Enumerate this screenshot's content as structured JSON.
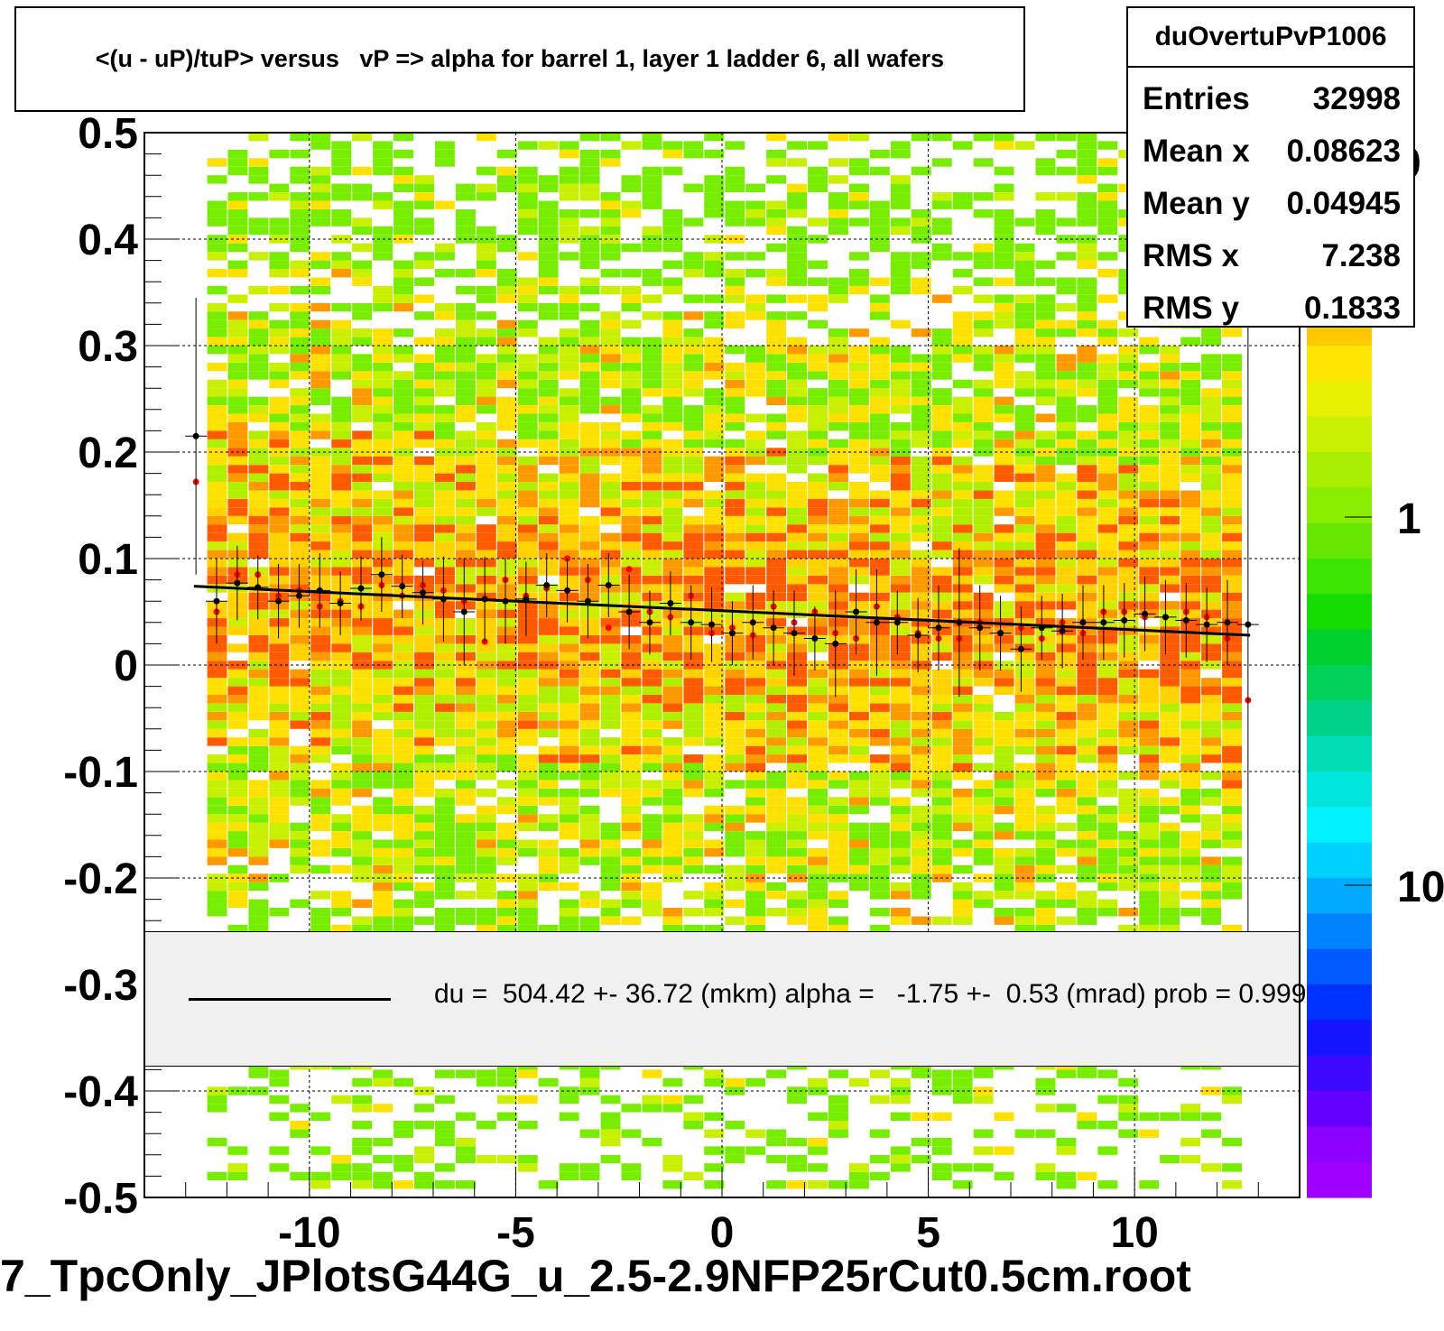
{
  "chart_data": {
    "type": "heatmap",
    "title": "<(u - uP)/tuP> versus   vP => alpha for barrel 1, layer 1 ladder 6, all wafers",
    "xlabel": "",
    "ylabel": "",
    "xlim": [
      -14,
      14
    ],
    "ylim": [
      -0.5,
      0.5
    ],
    "x_ticks": [
      -10,
      -5,
      0,
      5,
      10
    ],
    "y_ticks": [
      0.5,
      0.4,
      0.3,
      0.2,
      0.1,
      0,
      -0.1,
      -0.2,
      -0.3,
      -0.4,
      -0.5
    ],
    "grid": true,
    "colorbar": {
      "scale": "log",
      "labels": [
        "0",
        "1",
        "10"
      ]
    },
    "stats": {
      "name": "duOvertuPvP1006",
      "rows": [
        {
          "label": "Entries",
          "value": "32998"
        },
        {
          "label": "Mean x",
          "value": "0.08623"
        },
        {
          "label": "Mean y",
          "value": "0.04945"
        },
        {
          "label": "RMS x",
          "value": "7.238"
        },
        {
          "label": "RMS y",
          "value": "0.1833"
        }
      ]
    },
    "fit": {
      "label": "du =  504.42 +- 36.72 (mkm) alpha =   -1.75 +-  0.53 (mrad) prob = 0.999",
      "x": [
        -12.8,
        12.8
      ],
      "y": [
        0.074,
        0.028
      ]
    },
    "profile_black": {
      "x": [
        -12.75,
        -12.25,
        -11.75,
        -11.25,
        -10.75,
        -10.25,
        -9.75,
        -9.25,
        -8.75,
        -8.25,
        -7.75,
        -7.25,
        -6.75,
        -6.25,
        -5.75,
        -5.25,
        -4.75,
        -4.25,
        -3.75,
        -3.25,
        -2.75,
        -2.25,
        -1.75,
        -1.25,
        -0.75,
        -0.25,
        0.25,
        0.75,
        1.25,
        1.75,
        2.25,
        2.75,
        3.25,
        3.75,
        4.25,
        4.75,
        5.25,
        5.75,
        6.25,
        6.75,
        7.25,
        7.75,
        8.25,
        8.75,
        9.25,
        9.75,
        10.25,
        10.75,
        11.25,
        11.75,
        12.25,
        12.75
      ],
      "y": [
        0.215,
        0.06,
        0.077,
        0.073,
        0.06,
        0.065,
        0.07,
        0.058,
        0.072,
        0.085,
        0.074,
        0.068,
        0.062,
        0.05,
        0.062,
        0.06,
        0.062,
        0.075,
        0.07,
        0.06,
        0.075,
        0.05,
        0.04,
        0.058,
        0.04,
        0.038,
        0.03,
        0.04,
        0.035,
        0.03,
        0.025,
        0.02,
        0.05,
        0.04,
        0.04,
        0.028,
        0.035,
        0.04,
        0.035,
        0.03,
        0.015,
        0.035,
        0.032,
        0.04,
        0.04,
        0.042,
        0.048,
        0.045,
        0.042,
        0.038,
        0.04,
        0.038
      ],
      "err": [
        0.13,
        0.04,
        0.035,
        0.03,
        0.035,
        0.03,
        0.035,
        0.03,
        0.03,
        0.035,
        0.03,
        0.03,
        0.04,
        0.05,
        0.04,
        0.04,
        0.035,
        0.03,
        0.03,
        0.035,
        0.03,
        0.035,
        0.03,
        0.03,
        0.035,
        0.035,
        0.03,
        0.035,
        0.035,
        0.04,
        0.03,
        0.05,
        0.04,
        0.05,
        0.03,
        0.035,
        0.04,
        0.07,
        0.04,
        0.035,
        0.04,
        0.03,
        0.035,
        0.035,
        0.035,
        0.035,
        0.035,
        0.035,
        0.035,
        0.035,
        0.04,
        0.3
      ]
    },
    "profile_red": {
      "x": [
        -12.75,
        -12.25,
        -11.75,
        -11.25,
        -10.75,
        -10.25,
        -9.75,
        -9.25,
        -8.75,
        -8.25,
        -7.75,
        -7.25,
        -6.75,
        -6.25,
        -5.75,
        -5.25,
        -4.75,
        -4.25,
        -3.75,
        -3.25,
        -2.75,
        -2.25,
        -1.75,
        -1.25,
        -0.75,
        -0.25,
        0.25,
        0.75,
        1.25,
        1.75,
        2.25,
        2.75,
        3.25,
        3.75,
        4.25,
        4.75,
        5.25,
        5.75,
        6.25,
        6.75,
        7.25,
        7.75,
        8.25,
        8.75,
        9.25,
        9.75,
        10.25,
        10.75,
        11.25,
        11.75,
        12.25,
        12.75
      ],
      "y": [
        0.172,
        0.05,
        0.085,
        0.085,
        0.065,
        0.07,
        0.055,
        0.06,
        0.055,
        0.075,
        0.065,
        0.075,
        0.07,
        0.06,
        0.022,
        0.08,
        0.065,
        0.072,
        0.1,
        0.08,
        0.035,
        0.09,
        0.05,
        0.045,
        0.065,
        0.03,
        0.035,
        0.028,
        0.055,
        0.04,
        0.05,
        0.03,
        0.025,
        0.055,
        0.045,
        0.03,
        0.025,
        0.025,
        0.04,
        0.03,
        0.035,
        0.025,
        0.04,
        0.03,
        0.05,
        0.05,
        0.045,
        0.045,
        0.05,
        0.045,
        0.025,
        -0.033
      ]
    }
  }
}
